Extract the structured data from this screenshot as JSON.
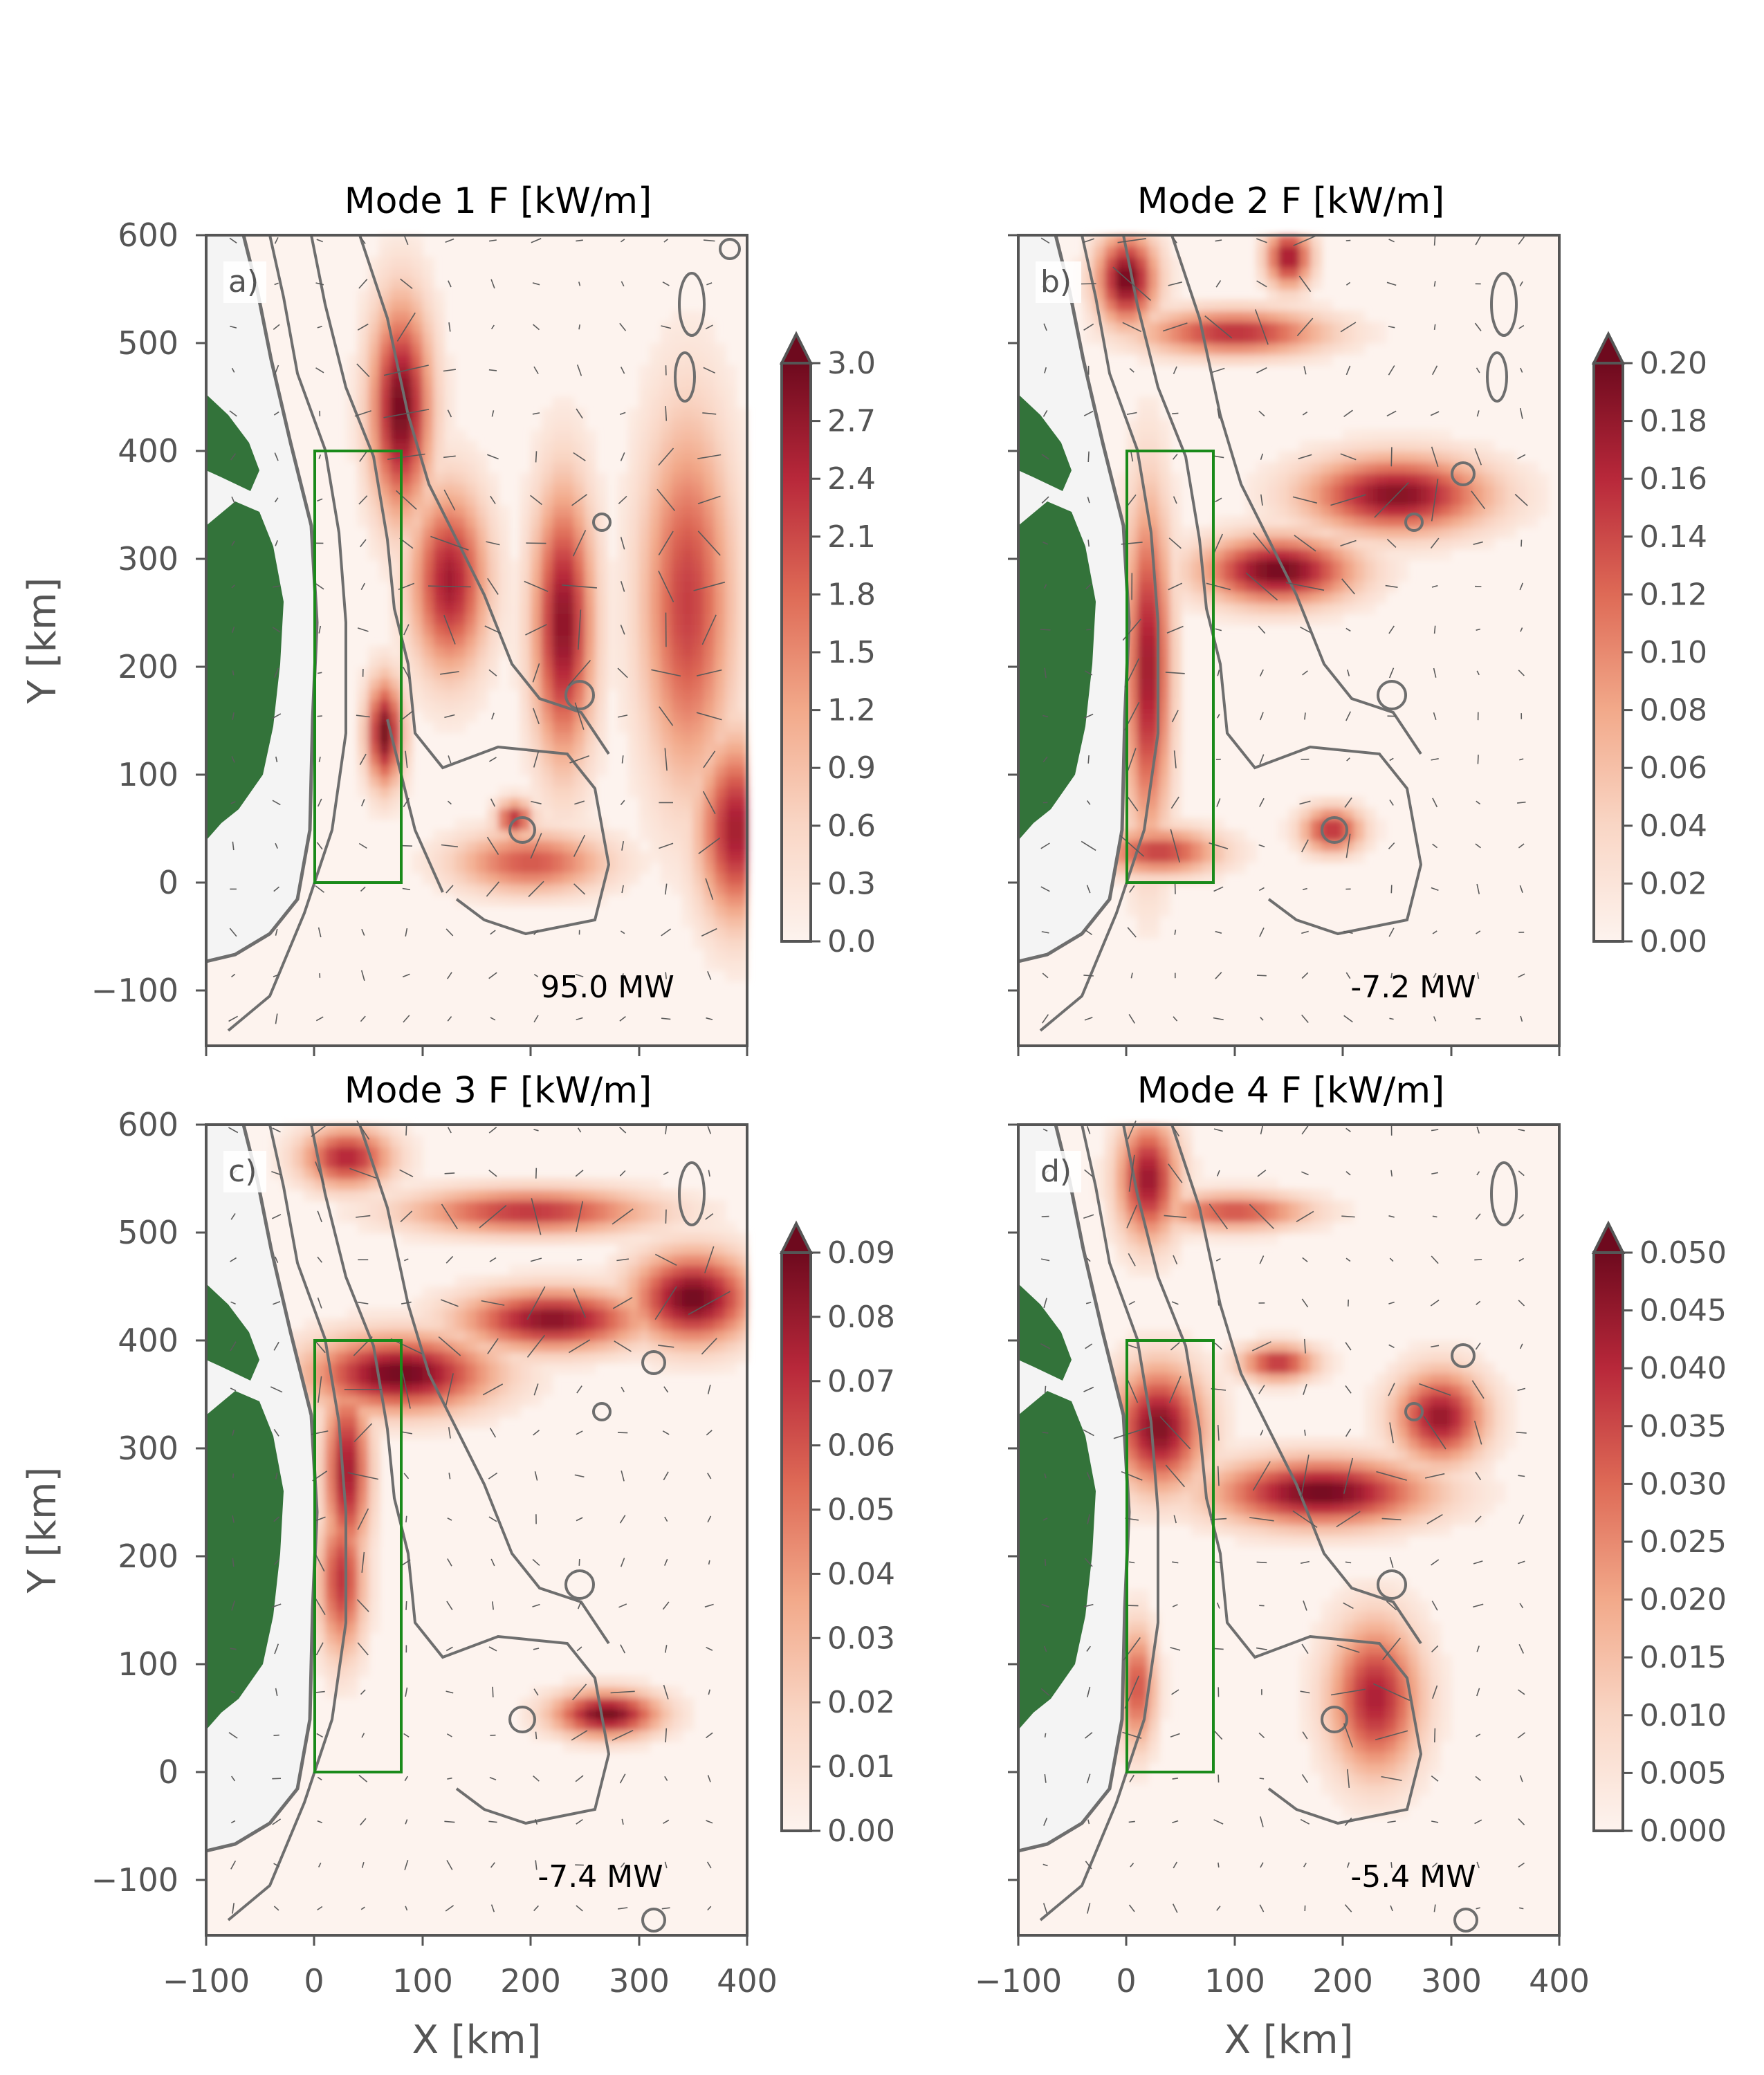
{
  "figure": {
    "x_axis_label": "X [km]",
    "y_axis_label": "Y [km]"
  },
  "style": {
    "land_color": "#33733a",
    "box_color": "#1a8a1a",
    "contour_color": "#6e6e6e",
    "spine_color": "#555555",
    "tick_text_color": "#555555",
    "colormap": [
      "#fdf3ee",
      "#f9d6c5",
      "#f2a98a",
      "#de6a56",
      "#b8283a",
      "#6e0a1e"
    ],
    "grid": false
  },
  "chart_data": [
    {
      "type": "heatmap",
      "panel_label": "a)",
      "title": "Mode 1 F [kW/m]",
      "annotation": "95.0 MW",
      "xlabel": "",
      "ylabel": "Y [km]",
      "xlim": [
        -100,
        400
      ],
      "ylim": [
        -150,
        600
      ],
      "x_ticks": [],
      "y_ticks": [
        "600",
        "500",
        "400",
        "300",
        "200",
        "100",
        "0",
        "−100"
      ],
      "box_km": {
        "x": [
          0,
          80
        ],
        "y": [
          0,
          400
        ]
      },
      "colorbar": {
        "min": 0.0,
        "max": 3.0,
        "extend": "max",
        "ticks": [
          "0.0",
          "0.3",
          "0.6",
          "0.9",
          "1.2",
          "1.5",
          "1.8",
          "2.1",
          "2.4",
          "2.7",
          "3.0"
        ]
      },
      "hotspots_km": [
        {
          "x": 80,
          "y": 440,
          "value": 3.0,
          "sx": 20,
          "sy": 70
        },
        {
          "x": 125,
          "y": 280,
          "value": 2.6,
          "sx": 25,
          "sy": 60
        },
        {
          "x": 65,
          "y": 140,
          "value": 3.0,
          "sx": 12,
          "sy": 35
        },
        {
          "x": 230,
          "y": 240,
          "value": 2.8,
          "sx": 20,
          "sy": 90
        },
        {
          "x": 345,
          "y": 260,
          "value": 2.2,
          "sx": 30,
          "sy": 120
        },
        {
          "x": 390,
          "y": 50,
          "value": 2.6,
          "sx": 25,
          "sy": 60
        },
        {
          "x": 200,
          "y": 20,
          "value": 2.0,
          "sx": 50,
          "sy": 20
        },
        {
          "x": 185,
          "y": 60,
          "value": 2.5,
          "sx": 12,
          "sy": 12
        }
      ]
    },
    {
      "type": "heatmap",
      "panel_label": "b)",
      "title": "Mode 2 F [kW/m]",
      "annotation": "-7.2 MW",
      "xlabel": "",
      "ylabel": "",
      "xlim": [
        -100,
        400
      ],
      "ylim": [
        -150,
        600
      ],
      "x_ticks": [],
      "y_ticks": [],
      "box_km": {
        "x": [
          0,
          80
        ],
        "y": [
          0,
          400
        ]
      },
      "colorbar": {
        "min": 0.0,
        "max": 0.2,
        "extend": "max",
        "ticks": [
          "0.00",
          "0.02",
          "0.04",
          "0.06",
          "0.08",
          "0.10",
          "0.12",
          "0.14",
          "0.16",
          "0.18",
          "0.20"
        ]
      },
      "hotspots_km": [
        {
          "x": 140,
          "y": 290,
          "value": 0.2,
          "sx": 50,
          "sy": 22
        },
        {
          "x": 250,
          "y": 360,
          "value": 0.19,
          "sx": 60,
          "sy": 25
        },
        {
          "x": 20,
          "y": 200,
          "value": 0.18,
          "sx": 15,
          "sy": 110
        },
        {
          "x": 0,
          "y": 560,
          "value": 0.2,
          "sx": 20,
          "sy": 30
        },
        {
          "x": 100,
          "y": 510,
          "value": 0.16,
          "sx": 60,
          "sy": 15
        },
        {
          "x": 150,
          "y": 580,
          "value": 0.18,
          "sx": 15,
          "sy": 20
        },
        {
          "x": 190,
          "y": 50,
          "value": 0.16,
          "sx": 20,
          "sy": 15
        },
        {
          "x": 30,
          "y": 30,
          "value": 0.15,
          "sx": 40,
          "sy": 15
        }
      ]
    },
    {
      "type": "heatmap",
      "panel_label": "c)",
      "title": "Mode 3 F [kW/m]",
      "annotation": "-7.4 MW",
      "xlabel": "X [km]",
      "ylabel": "Y [km]",
      "xlim": [
        -100,
        400
      ],
      "ylim": [
        -150,
        600
      ],
      "x_ticks": [
        "−100",
        "0",
        "100",
        "200",
        "300",
        "400"
      ],
      "y_ticks": [
        "600",
        "500",
        "400",
        "300",
        "200",
        "100",
        "0",
        "−100"
      ],
      "box_km": {
        "x": [
          0,
          80
        ],
        "y": [
          0,
          400
        ]
      },
      "colorbar": {
        "min": 0.0,
        "max": 0.09,
        "extend": "max",
        "ticks": [
          "0.00",
          "0.01",
          "0.02",
          "0.03",
          "0.04",
          "0.05",
          "0.06",
          "0.07",
          "0.08",
          "0.09"
        ]
      },
      "hotspots_km": [
        {
          "x": 80,
          "y": 370,
          "value": 0.09,
          "sx": 60,
          "sy": 25
        },
        {
          "x": 220,
          "y": 420,
          "value": 0.085,
          "sx": 60,
          "sy": 20
        },
        {
          "x": 350,
          "y": 440,
          "value": 0.09,
          "sx": 40,
          "sy": 30
        },
        {
          "x": 30,
          "y": 280,
          "value": 0.08,
          "sx": 15,
          "sy": 60
        },
        {
          "x": 25,
          "y": 180,
          "value": 0.07,
          "sx": 15,
          "sy": 50
        },
        {
          "x": 270,
          "y": 55,
          "value": 0.09,
          "sx": 35,
          "sy": 15
        },
        {
          "x": 200,
          "y": 520,
          "value": 0.07,
          "sx": 80,
          "sy": 15
        },
        {
          "x": 30,
          "y": 570,
          "value": 0.075,
          "sx": 30,
          "sy": 20
        }
      ]
    },
    {
      "type": "heatmap",
      "panel_label": "d)",
      "title": "Mode 4 F [kW/m]",
      "annotation": "-5.4 MW",
      "xlabel": "X [km]",
      "ylabel": "",
      "xlim": [
        -100,
        400
      ],
      "ylim": [
        -150,
        600
      ],
      "x_ticks": [
        "−100",
        "0",
        "100",
        "200",
        "300",
        "400"
      ],
      "y_ticks": [],
      "box_km": {
        "x": [
          0,
          80
        ],
        "y": [
          0,
          400
        ]
      },
      "colorbar": {
        "min": 0.0,
        "max": 0.05,
        "extend": "max",
        "ticks": [
          "0.000",
          "0.005",
          "0.010",
          "0.015",
          "0.020",
          "0.025",
          "0.030",
          "0.035",
          "0.040",
          "0.045",
          "0.050"
        ]
      },
      "hotspots_km": [
        {
          "x": 180,
          "y": 260,
          "value": 0.05,
          "sx": 70,
          "sy": 22
        },
        {
          "x": 30,
          "y": 320,
          "value": 0.048,
          "sx": 30,
          "sy": 40
        },
        {
          "x": 290,
          "y": 330,
          "value": 0.045,
          "sx": 30,
          "sy": 30
        },
        {
          "x": 140,
          "y": 380,
          "value": 0.04,
          "sx": 25,
          "sy": 12
        },
        {
          "x": 20,
          "y": 550,
          "value": 0.045,
          "sx": 20,
          "sy": 40
        },
        {
          "x": 100,
          "y": 520,
          "value": 0.035,
          "sx": 50,
          "sy": 12
        },
        {
          "x": 230,
          "y": 70,
          "value": 0.042,
          "sx": 30,
          "sy": 50
        },
        {
          "x": 10,
          "y": 80,
          "value": 0.035,
          "sx": 12,
          "sy": 40
        }
      ]
    }
  ]
}
